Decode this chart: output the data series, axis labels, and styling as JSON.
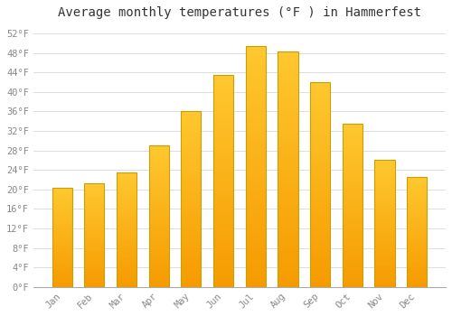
{
  "title": "Average monthly temperatures (°F ) in Hammerfest",
  "months": [
    "Jan",
    "Feb",
    "Mar",
    "Apr",
    "May",
    "Jun",
    "Jul",
    "Aug",
    "Sep",
    "Oct",
    "Nov",
    "Dec"
  ],
  "values": [
    20.3,
    21.2,
    23.5,
    29.0,
    36.0,
    43.5,
    49.5,
    48.3,
    42.0,
    33.5,
    26.0,
    22.5
  ],
  "bar_color_top": "#FFC020",
  "bar_color_bottom": "#F59B00",
  "bar_edge_color": "#C8A000",
  "background_color": "#FFFFFF",
  "plot_bg_color": "#FFFFFF",
  "grid_color": "#DDDDDD",
  "ylim": [
    0,
    54
  ],
  "yticks": [
    0,
    4,
    8,
    12,
    16,
    20,
    24,
    28,
    32,
    36,
    40,
    44,
    48,
    52
  ],
  "ytick_labels": [
    "0°F",
    "4°F",
    "8°F",
    "12°F",
    "16°F",
    "20°F",
    "24°F",
    "28°F",
    "32°F",
    "36°F",
    "40°F",
    "44°F",
    "48°F",
    "52°F"
  ],
  "title_fontsize": 10,
  "tick_fontsize": 7.5,
  "font_family": "monospace",
  "tick_color": "#888888",
  "title_color": "#333333"
}
